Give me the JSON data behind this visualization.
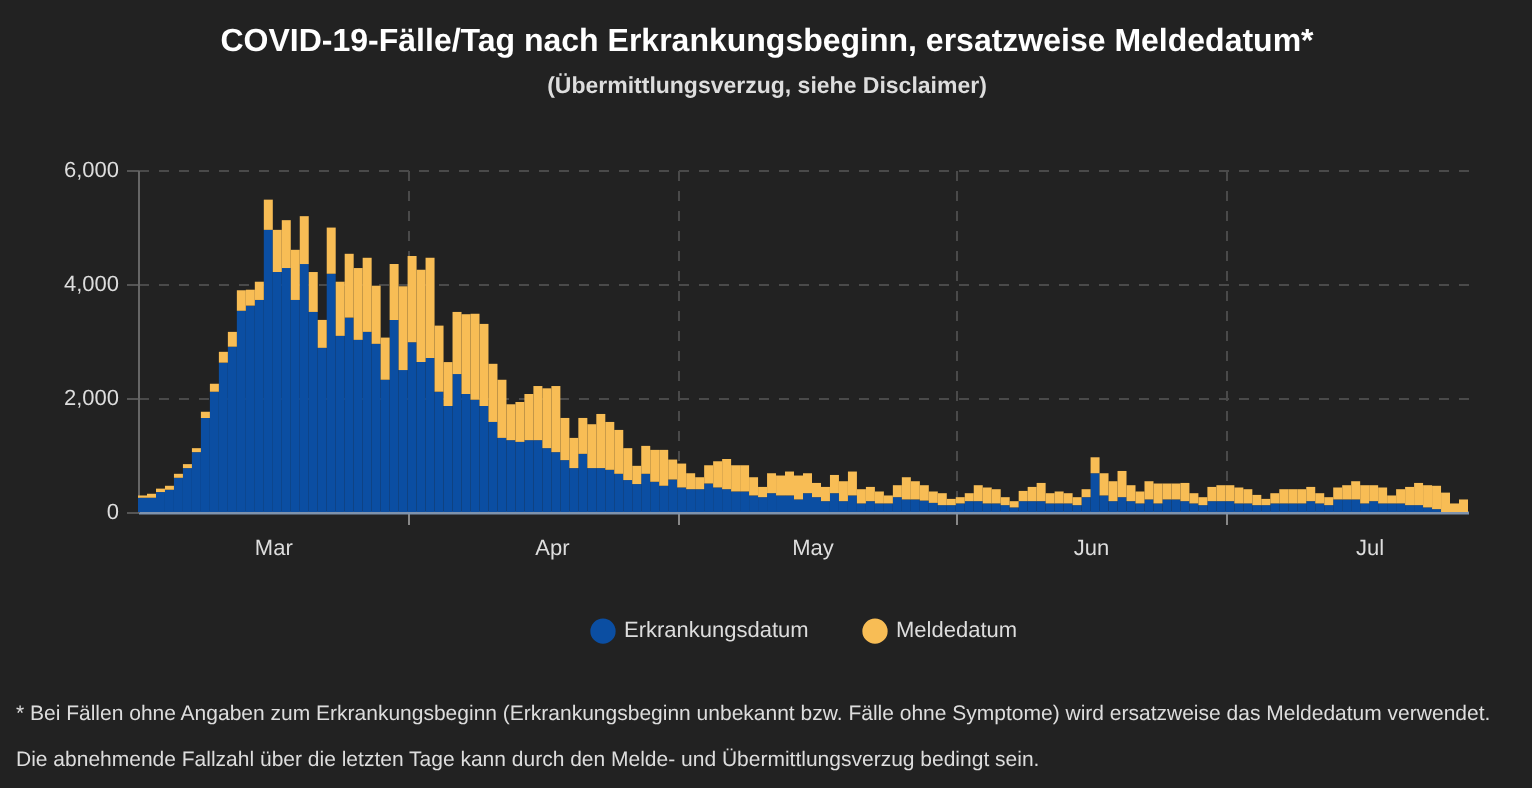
{
  "chart_data": {
    "type": "bar",
    "title": "COVID-19-Fälle/Tag nach Erkrankungsbeginn, ersatzweise Meldedatum*",
    "subtitle": "(Übermittlungsverzug, siehe Disclaimer)",
    "x": [
      "--03-02",
      "--03-03",
      "--03-04",
      "--03-05",
      "--03-06",
      "--03-07",
      "--03-08",
      "--03-09",
      "--03-10",
      "--03-11",
      "--03-12",
      "--03-13",
      "--03-14",
      "--03-15",
      "--03-16",
      "--03-17",
      "--03-18",
      "--03-19",
      "--03-20",
      "--03-21",
      "--03-22",
      "--03-23",
      "--03-24",
      "--03-25",
      "--03-26",
      "--03-27",
      "--03-28",
      "--03-29",
      "--03-30",
      "--03-31",
      "--04-01",
      "--04-02",
      "--04-03",
      "--04-04",
      "--04-05",
      "--04-06",
      "--04-07",
      "--04-08",
      "--04-09",
      "--04-10",
      "--04-11",
      "--04-12",
      "--04-13",
      "--04-14",
      "--04-15",
      "--04-16",
      "--04-17",
      "--04-18",
      "--04-19",
      "--04-20",
      "--04-21",
      "--04-22",
      "--04-23",
      "--04-24",
      "--04-25",
      "--04-26",
      "--04-27",
      "--04-28",
      "--04-29",
      "--04-30",
      "--05-01",
      "--05-02",
      "--05-03",
      "--05-04",
      "--05-05",
      "--05-06",
      "--05-07",
      "--05-08",
      "--05-09",
      "--05-10",
      "--05-11",
      "--05-12",
      "--05-13",
      "--05-14",
      "--05-15",
      "--05-16",
      "--05-17",
      "--05-18",
      "--05-19",
      "--05-20",
      "--05-21",
      "--05-22",
      "--05-23",
      "--05-24",
      "--05-25",
      "--05-26",
      "--05-27",
      "--05-28",
      "--05-29",
      "--05-30",
      "--05-31",
      "--06-01",
      "--06-02",
      "--06-03",
      "--06-04",
      "--06-05",
      "--06-06",
      "--06-07",
      "--06-08",
      "--06-09",
      "--06-10",
      "--06-11",
      "--06-12",
      "--06-13",
      "--06-14",
      "--06-15",
      "--06-16",
      "--06-17",
      "--06-18",
      "--06-19",
      "--06-20",
      "--06-21",
      "--06-22",
      "--06-23",
      "--06-24",
      "--06-25",
      "--06-26",
      "--06-27",
      "--06-28",
      "--06-29",
      "--06-30",
      "--07-01",
      "--07-02",
      "--07-03",
      "--07-04",
      "--07-05",
      "--07-06",
      "--07-07",
      "--07-08",
      "--07-09",
      "--07-10",
      "--07-11",
      "--07-12",
      "--07-13",
      "--07-14",
      "--07-15",
      "--07-16",
      "--07-17",
      "--07-18",
      "--07-19",
      "--07-20",
      "--07-21",
      "--07-22",
      "--07-23",
      "--07-24",
      "--07-25",
      "--07-26",
      "--07-27"
    ],
    "series": [
      {
        "name": "Erkrankungsdatum",
        "color": "#0b4ea2",
        "values": [
          250,
          250,
          350,
          390,
          600,
          770,
          1050,
          1650,
          2110,
          2620,
          2900,
          3530,
          3620,
          3720,
          4950,
          4210,
          4280,
          3720,
          4350,
          3510,
          2880,
          4180,
          3090,
          3410,
          3020,
          3160,
          2950,
          2320,
          3370,
          2490,
          2980,
          2630,
          2700,
          2110,
          1860,
          2420,
          2070,
          1970,
          1860,
          1580,
          1300,
          1260,
          1230,
          1260,
          1260,
          1120,
          1050,
          910,
          770,
          1020,
          770,
          770,
          740,
          670,
          560,
          490,
          670,
          530,
          460,
          570,
          430,
          400,
          400,
          500,
          430,
          400,
          360,
          360,
          290,
          260,
          330,
          290,
          290,
          220,
          330,
          260,
          190,
          330,
          190,
          290,
          150,
          190,
          150,
          150,
          260,
          220,
          220,
          200,
          160,
          120,
          120,
          150,
          190,
          190,
          150,
          150,
          120,
          80,
          190,
          190,
          190,
          150,
          150,
          150,
          120,
          260,
          680,
          290,
          190,
          260,
          190,
          150,
          220,
          150,
          220,
          220,
          190,
          150,
          120,
          190,
          190,
          190,
          150,
          150,
          120,
          120,
          150,
          150,
          150,
          150,
          190,
          150,
          120,
          220,
          220,
          220,
          150,
          190,
          150,
          150,
          150,
          120,
          120,
          80,
          50,
          0,
          0,
          0
        ]
      },
      {
        "name": "Meldedatum",
        "color": "#f8bd55",
        "values": [
          40,
          70,
          60,
          70,
          70,
          70,
          70,
          110,
          140,
          190,
          260,
          360,
          280,
          320,
          530,
          740,
          840,
          880,
          840,
          700,
          490,
          810,
          950,
          1120,
          1260,
          1300,
          1020,
          740,
          980,
          1470,
          1510,
          1620,
          1760,
          1160,
          770,
          1090,
          1400,
          1510,
          1440,
          1020,
          1020,
          630,
          700,
          810,
          950,
          1050,
          1160,
          740,
          530,
          630,
          770,
          950,
          840,
          770,
          560,
          320,
          490,
          560,
          630,
          350,
          420,
          280,
          210,
          320,
          460,
          530,
          460,
          460,
          320,
          180,
          350,
          350,
          420,
          420,
          350,
          250,
          250,
          320,
          350,
          420,
          250,
          250,
          210,
          140,
          210,
          390,
          320,
          270,
          200,
          210,
          110,
          110,
          140,
          280,
          280,
          250,
          140,
          110,
          180,
          250,
          320,
          180,
          210,
          180,
          140,
          140,
          280,
          390,
          350,
          460,
          280,
          210,
          320,
          350,
          280,
          280,
          320,
          180,
          140,
          250,
          280,
          280,
          280,
          250,
          180,
          110,
          180,
          250,
          250,
          250,
          250,
          180,
          140,
          210,
          250,
          320,
          320,
          280,
          280,
          140,
          250,
          320,
          390,
          390,
          410,
          340,
          150,
          220
        ]
      }
    ],
    "stacked": true,
    "xlim": [
      "--03-02",
      "--07-28"
    ],
    "xticks": [
      {
        "value": "--03-17",
        "label": "Mar"
      },
      {
        "value": "--04-01",
        "label": null
      },
      {
        "value": "--04-17",
        "label": "Apr"
      },
      {
        "value": "--05-01",
        "label": null
      },
      {
        "value": "--05-16",
        "label": "May"
      },
      {
        "value": "--06-01",
        "label": null
      },
      {
        "value": "--06-16",
        "label": "Jun"
      },
      {
        "value": "--07-01",
        "label": null
      },
      {
        "value": "--07-17",
        "label": "Jul"
      }
    ],
    "ylim": [
      0,
      6000
    ],
    "yticks": [
      0,
      {
        "value": 2000,
        "label": "2,000"
      },
      {
        "value": 4000,
        "label": "4,000"
      },
      {
        "value": 6000,
        "label": "6,000"
      }
    ],
    "grid": true,
    "legend": "bottom",
    "annotations": [
      "* Bei Fällen ohne Angaben zum Erkrankungsbeginn (Erkrankungsbeginn unbekannt bzw. Fälle ohne Symptome) wird ersatzweise das Meldedatum verwendet. Die abnehmende Fallzahl über die letzten Tage kann durch den Melde- und Übermittlungsverzug bedingt sein."
    ]
  }
}
